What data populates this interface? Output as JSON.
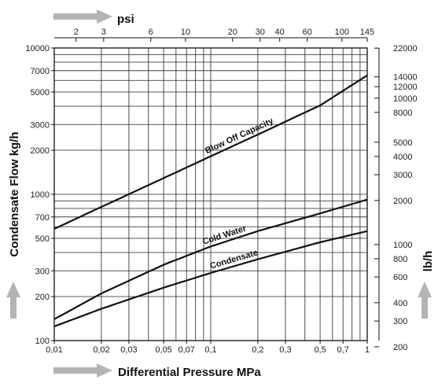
{
  "chart_data": {
    "type": "line",
    "xlabel": "Differential Pressure MPa",
    "x2label": "psi",
    "ylabel": "Condensate Flow kg/h",
    "y2label": "lb/h",
    "x_scale": "log",
    "y_scale": "log",
    "xlim": [
      0.01,
      1
    ],
    "ylim": [
      100,
      10000
    ],
    "grid": true,
    "x_ticks": [
      0.01,
      0.02,
      0.03,
      0.05,
      0.07,
      0.1,
      0.2,
      0.3,
      0.5,
      0.7,
      1
    ],
    "x_tick_labels": [
      "0,01",
      "0,02",
      "0,03",
      "0,05",
      "0,07",
      "0,1",
      "0,2",
      "0,3",
      "0,5",
      "0,7",
      "1"
    ],
    "y_ticks": [
      100,
      200,
      300,
      500,
      700,
      1000,
      2000,
      3000,
      5000,
      7000,
      10000
    ],
    "y_tick_labels": [
      "100",
      "200",
      "300",
      "500",
      "700",
      "1000",
      "2000",
      "3000",
      "5000",
      "7000",
      "10000"
    ],
    "x2_ticks": [
      2,
      3,
      6,
      10,
      20,
      30,
      40,
      60,
      100,
      145
    ],
    "x2_tick_labels": [
      "2",
      "3",
      "6",
      "10",
      "20",
      "30",
      "40",
      "60",
      "100",
      "145"
    ],
    "y2_ticks": [
      200,
      300,
      400,
      600,
      800,
      1000,
      2000,
      3000,
      4000,
      5000,
      8000,
      10000,
      12000,
      14000,
      22000
    ],
    "y2_tick_labels": [
      "200",
      "300",
      "400",
      "600",
      "800",
      "1000",
      "2000",
      "3000",
      "4000",
      "5000",
      "8000",
      "10000",
      "12000",
      "14000",
      "22000"
    ],
    "series": [
      {
        "name": "Blow Off Capacity",
        "x": [
          0.01,
          0.02,
          0.05,
          0.1,
          0.2,
          0.5,
          1
        ],
        "y": [
          580,
          820,
          1290,
          1820,
          2560,
          4050,
          6500
        ]
      },
      {
        "name": "Cold Water",
        "x": [
          0.01,
          0.02,
          0.05,
          0.1,
          0.2,
          0.5,
          1
        ],
        "y": [
          140,
          210,
          330,
          440,
          560,
          740,
          920
        ]
      },
      {
        "name": "Condensate",
        "x": [
          0.01,
          0.02,
          0.05,
          0.1,
          0.2,
          0.5,
          1
        ],
        "y": [
          125,
          165,
          230,
          290,
          360,
          470,
          560
        ]
      }
    ],
    "colors": {
      "line": "#111111",
      "grid": "#222222",
      "arrow": "#b4b4b4"
    }
  }
}
